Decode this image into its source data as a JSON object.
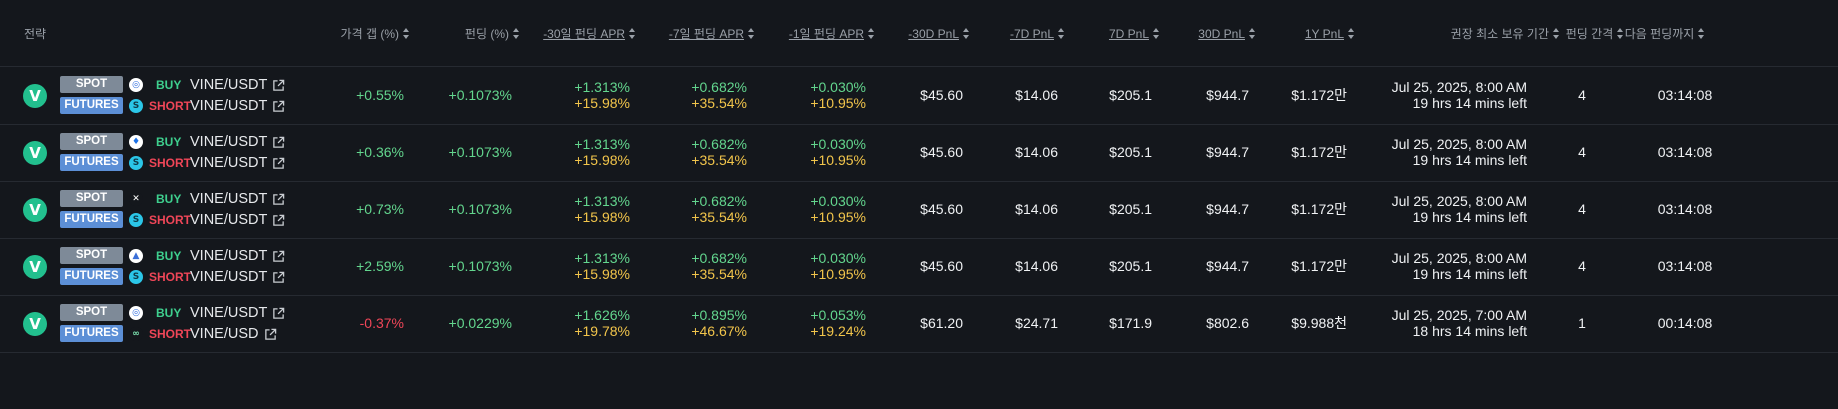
{
  "headers": {
    "strategy": "전략",
    "price_gap": "가격 갭 (%)",
    "funding": "펀딩 (%)",
    "apr30": "-30일 펀딩 APR",
    "apr7": "-7일 펀딩 APR",
    "apr1": "-1일 펀딩 APR",
    "pnl30": "-30D PnL",
    "pnl7neg": "-7D PnL",
    "pnl7": "7D PnL",
    "pnl30pos": "30D PnL",
    "pnl1y": "1Y PnL",
    "hold": "권장 최소 보유 기간",
    "interval": "펀딩 간격",
    "next": "다음 펀딩까지"
  },
  "rows": [
    {
      "spot_label": "SPOT",
      "futures_label": "FUTURES",
      "spot_exchange_icon": "exchange-a-icon",
      "futures_exchange_icon": "exchange-f-icon",
      "buy": "BUY",
      "short": "SHORT",
      "spot_pair": "VINE/USDT",
      "futures_pair": "VINE/USDT",
      "price_gap": "+0.55%",
      "funding": "+0.1073%",
      "apr30_a": "+1.313%",
      "apr30_b": "+15.98%",
      "apr7_a": "+0.682%",
      "apr7_b": "+35.54%",
      "apr1_a": "+0.030%",
      "apr1_b": "+10.95%",
      "pnl30neg": "$45.60",
      "pnl7neg": "$14.06",
      "pnl7": "$205.1",
      "pnl30": "$944.7",
      "pnl1y": "$1.172만",
      "hold_date": "Jul 25, 2025, 8:00 AM",
      "hold_left": "19 hrs 14 mins left",
      "interval": "4",
      "next": "03:14:08"
    },
    {
      "spot_label": "SPOT",
      "futures_label": "FUTURES",
      "spot_exchange_icon": "exchange-b-icon",
      "futures_exchange_icon": "exchange-f-icon",
      "buy": "BUY",
      "short": "SHORT",
      "spot_pair": "VINE/USDT",
      "futures_pair": "VINE/USDT",
      "price_gap": "+0.36%",
      "funding": "+0.1073%",
      "apr30_a": "+1.313%",
      "apr30_b": "+15.98%",
      "apr7_a": "+0.682%",
      "apr7_b": "+35.54%",
      "apr1_a": "+0.030%",
      "apr1_b": "+10.95%",
      "pnl30neg": "$45.60",
      "pnl7neg": "$14.06",
      "pnl7": "$205.1",
      "pnl30": "$944.7",
      "pnl1y": "$1.172만",
      "hold_date": "Jul 25, 2025, 8:00 AM",
      "hold_left": "19 hrs 14 mins left",
      "interval": "4",
      "next": "03:14:08"
    },
    {
      "spot_label": "SPOT",
      "futures_label": "FUTURES",
      "spot_exchange_icon": "exchange-c-icon",
      "futures_exchange_icon": "exchange-f-icon",
      "buy": "BUY",
      "short": "SHORT",
      "spot_pair": "VINE/USDT",
      "futures_pair": "VINE/USDT",
      "price_gap": "+0.73%",
      "funding": "+0.1073%",
      "apr30_a": "+1.313%",
      "apr30_b": "+15.98%",
      "apr7_a": "+0.682%",
      "apr7_b": "+35.54%",
      "apr1_a": "+0.030%",
      "apr1_b": "+10.95%",
      "pnl30neg": "$45.60",
      "pnl7neg": "$14.06",
      "pnl7": "$205.1",
      "pnl30": "$944.7",
      "pnl1y": "$1.172만",
      "hold_date": "Jul 25, 2025, 8:00 AM",
      "hold_left": "19 hrs 14 mins left",
      "interval": "4",
      "next": "03:14:08"
    },
    {
      "spot_label": "SPOT",
      "futures_label": "FUTURES",
      "spot_exchange_icon": "exchange-d-icon",
      "futures_exchange_icon": "exchange-f-icon",
      "buy": "BUY",
      "short": "SHORT",
      "spot_pair": "VINE/USDT",
      "futures_pair": "VINE/USDT",
      "price_gap": "+2.59%",
      "funding": "+0.1073%",
      "apr30_a": "+1.313%",
      "apr30_b": "+15.98%",
      "apr7_a": "+0.682%",
      "apr7_b": "+35.54%",
      "apr1_a": "+0.030%",
      "apr1_b": "+10.95%",
      "pnl30neg": "$45.60",
      "pnl7neg": "$14.06",
      "pnl7": "$205.1",
      "pnl30": "$944.7",
      "pnl1y": "$1.172만",
      "hold_date": "Jul 25, 2025, 8:00 AM",
      "hold_left": "19 hrs 14 mins left",
      "interval": "4",
      "next": "03:14:08"
    },
    {
      "spot_label": "SPOT",
      "futures_label": "FUTURES",
      "spot_exchange_icon": "exchange-a-icon",
      "futures_exchange_icon": "exchange-g-icon",
      "buy": "BUY",
      "short": "SHORT",
      "spot_pair": "VINE/USDT",
      "futures_pair": "VINE/USD",
      "price_gap": "-0.37%",
      "funding": "+0.0229%",
      "apr30_a": "+1.626%",
      "apr30_b": "+19.78%",
      "apr7_a": "+0.895%",
      "apr7_b": "+46.67%",
      "apr1_a": "+0.053%",
      "apr1_b": "+19.24%",
      "pnl30neg": "$61.20",
      "pnl7neg": "$24.71",
      "pnl7": "$171.9",
      "pnl30": "$802.6",
      "pnl1y": "$9.988천",
      "hold_date": "Jul 25, 2025, 7:00 AM",
      "hold_left": "18 hrs 14 mins left",
      "interval": "1",
      "next": "00:14:08"
    }
  ],
  "colors": {
    "positive": "#63d68e",
    "negative": "#f04658",
    "apr_secondary": "#f2c54b",
    "vine_brand": "#22c08e"
  }
}
